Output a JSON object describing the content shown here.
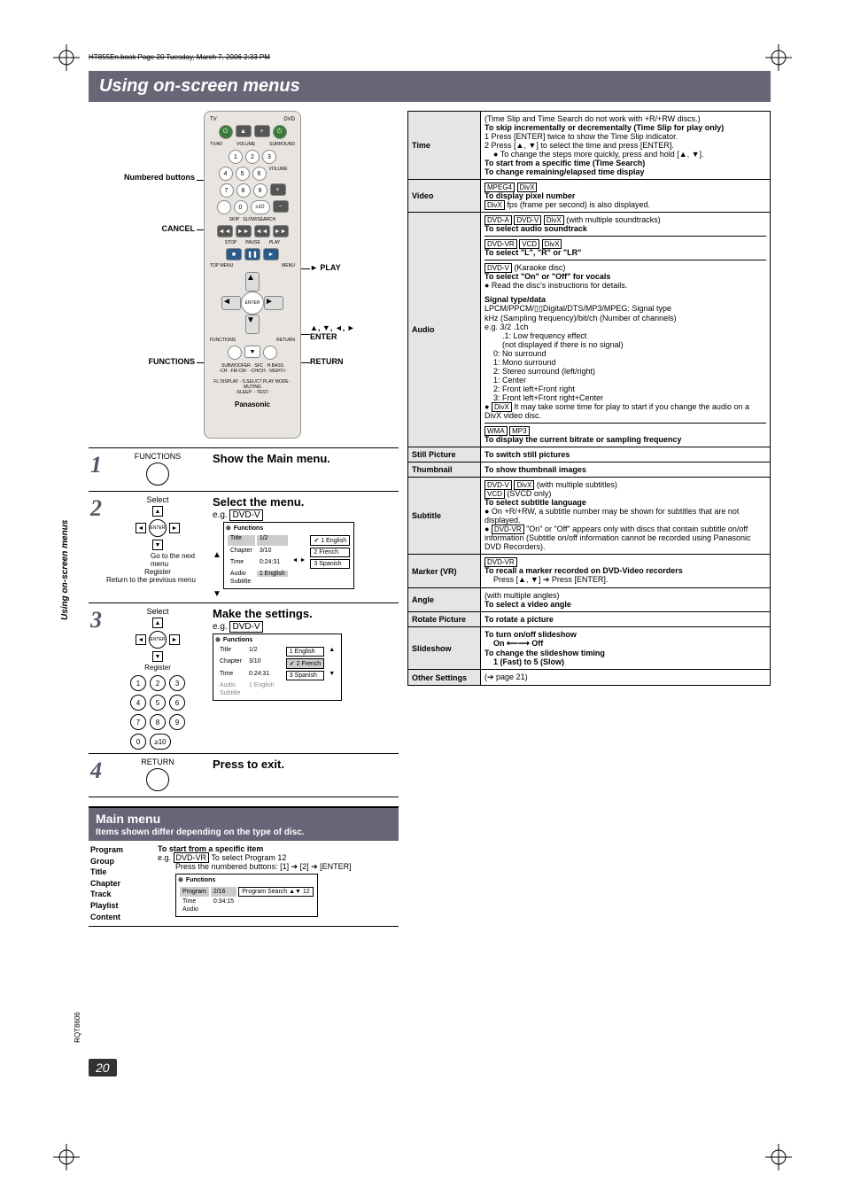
{
  "meta": {
    "header_runner": "HT855En.book   Page 20   Tuesday, March 7, 2006   2:33 PM",
    "page_number": "20",
    "model": "RQT8606",
    "side_label": "Using on-screen menus"
  },
  "title": "Using on-screen menus",
  "remote": {
    "callouts": {
      "numbered": "Numbered buttons",
      "cancel": "CANCEL",
      "functions": "FUNCTIONS",
      "play": "PLAY",
      "enter": "▲, ▼, ◄, ►\nENTER",
      "return": "RETURN"
    },
    "brand": "Panasonic",
    "dpad_center": "ENTER",
    "labels": {
      "tv": "TV",
      "dvd": "DVD",
      "tv_av": "TV/AV",
      "volume": "VOLUME",
      "surround": "SURROUND",
      "ext_in": "EXT-IN",
      "onetouch": "ONE TOUCH PLAY",
      "stop": "STOP",
      "pause": "PAUSE",
      "play": "PLAY",
      "topmenu": "TOP MENU",
      "menu": "MENU",
      "direct": "DIRECT",
      "playlist": "PLAY LIST",
      "functions": "FUNCTIONS",
      "return": "RETURN",
      "setup": "SETUP"
    }
  },
  "steps": [
    {
      "num": "1",
      "col2_label": "FUNCTIONS",
      "title": "Show the Main menu."
    },
    {
      "num": "2",
      "col2_top": "Select",
      "col2_goto": "Go to the next menu",
      "col2_register": "Register",
      "col2_return": "Return to the previous menu",
      "title": "Select the menu.",
      "eg": "e.g.",
      "eg_tag": "DVD-V",
      "osd": {
        "header": "Functions",
        "rows": [
          {
            "k": "Title",
            "v": "1/2",
            "sel": true
          },
          {
            "k": "Chapter",
            "v": "3/10"
          },
          {
            "k": "Time",
            "v": "0:24:31"
          },
          {
            "k": "Audio",
            "v": "1 English"
          },
          {
            "k": "Subtitle",
            "v": ""
          }
        ],
        "options": [
          {
            "t": "1 English",
            "sel": true
          },
          {
            "t": "2 French"
          },
          {
            "t": "3 Spanish"
          }
        ]
      }
    },
    {
      "num": "3",
      "col2_top": "Select",
      "col2_register": "Register",
      "title": "Make the settings.",
      "eg": "e.g.",
      "eg_tag": "DVD-V",
      "osd": {
        "header": "Functions",
        "rows": [
          {
            "k": "Title",
            "v": "1/2"
          },
          {
            "k": "Chapter",
            "v": "3/10"
          },
          {
            "k": "Time",
            "v": "0:24:31"
          },
          {
            "k": "Audio",
            "v": "1 English",
            "grey": true
          },
          {
            "k": "Subtitle",
            "v": "",
            "grey": true
          }
        ],
        "options": [
          {
            "t": "1 English"
          },
          {
            "t": "2 French",
            "sel": true
          },
          {
            "t": "3 Spanish"
          }
        ]
      },
      "numpad": [
        "1",
        "2",
        "3",
        "4",
        "5",
        "6",
        "7",
        "8",
        "9",
        "0",
        "≥10"
      ]
    },
    {
      "num": "4",
      "col2_label": "RETURN",
      "title": "Press to exit."
    }
  ],
  "main_menu": {
    "title": "Main menu",
    "subtitle": "Items shown differ depending on the type of disc.",
    "left": [
      "Program",
      "Group",
      "Title",
      "Chapter",
      "Track",
      "Playlist",
      "Content"
    ],
    "right_heading": "To start from a specific item",
    "right_eg": "e.g.",
    "right_eg_tag": "DVD-VR",
    "right_eg_text": "To select Program 12",
    "right_instr": "Press the numbered buttons: [1] ➔ [2] ➔ [ENTER]",
    "osd": {
      "header": "Functions",
      "rows": [
        {
          "k": "Program",
          "v": "2/16",
          "sel": true
        },
        {
          "k": "Time",
          "v": "0:34:15"
        },
        {
          "k": "Audio",
          "v": ""
        }
      ],
      "search": "Program Search ▲▼ 12"
    }
  },
  "ref": [
    {
      "label": "Time",
      "body": [
        {
          "t": "(Time Slip and Time Search do not work with +R/+RW discs.)"
        },
        {
          "t": "To skip incrementally or decrementally (Time Slip for play only)",
          "bold": true
        },
        {
          "t": "1    Press [ENTER] twice to show the Time Slip indicator."
        },
        {
          "t": "2    Press [▲, ▼] to select the time and press [ENTER]."
        },
        {
          "t": "● To change the steps more quickly, press and hold [▲, ▼].",
          "indent": 1
        },
        {
          "t": "To start from a specific time (Time Search)",
          "bold": true
        },
        {
          "t": "To change remaining/elapsed time display",
          "bold": true
        }
      ]
    },
    {
      "label": "Video",
      "body": [
        {
          "tags": [
            "MPEG4",
            "DivX"
          ]
        },
        {
          "t": "To display pixel number",
          "bold": true
        },
        {
          "t_pre_tag": "DivX",
          "t": " fps (frame per second) is also displayed."
        }
      ]
    },
    {
      "label": "Audio",
      "body": [
        {
          "tags": [
            "DVD-A",
            "DVD-V",
            "DivX"
          ],
          "suffix": " (with multiple soundtracks)"
        },
        {
          "t": "To select audio soundtrack",
          "bold": true
        },
        {
          "hr": true
        },
        {
          "tags": [
            "DVD-VR",
            "VCD",
            "DivX"
          ]
        },
        {
          "t": "To select \"L\", \"R\" or \"LR\"",
          "bold": true
        },
        {
          "hr": true
        },
        {
          "tags": [
            "DVD-V"
          ],
          "suffix": " (Karaoke disc)"
        },
        {
          "t": "To select \"On\" or \"Off\" for vocals",
          "bold": true
        },
        {
          "t": "● Read the disc's instructions for details."
        },
        {
          "blank": true
        },
        {
          "t": "Signal type/data",
          "bold": true
        },
        {
          "t": "LPCM/PPCM/▯▯Digital/DTS/MP3/MPEG: Signal type"
        },
        {
          "t": "kHz (Sampling frequency)/bit/ch (Number of channels)"
        },
        {
          "t": "e.g. 3/2 .1ch"
        },
        {
          "t": ".1: Low frequency effect",
          "indent": 2
        },
        {
          "t": "(not displayed if there is no signal)",
          "indent": 2
        },
        {
          "t": "0: No surround",
          "indent": 1
        },
        {
          "t": "1: Mono surround",
          "indent": 1
        },
        {
          "t": "2: Stereo surround (left/right)",
          "indent": 1
        },
        {
          "t": "1: Center",
          "indent": 1
        },
        {
          "t": "2: Front left+Front right",
          "indent": 1
        },
        {
          "t": "3: Front left+Front right+Center",
          "indent": 1
        },
        {
          "t_pre": "● ",
          "t_pre_tag": "DivX",
          "t": " It may take some time for play to start if you change the audio on a DivX video disc."
        },
        {
          "hr": true
        },
        {
          "tags": [
            "WMA",
            "MP3"
          ]
        },
        {
          "t": "To display the current bitrate or sampling frequency",
          "bold": true
        }
      ]
    },
    {
      "label": "Still Picture",
      "body": [
        {
          "t": "To switch still pictures",
          "bold": true
        }
      ]
    },
    {
      "label": "Thumbnail",
      "body": [
        {
          "t": "To show thumbnail images",
          "bold": true
        }
      ]
    },
    {
      "label": "Subtitle",
      "body": [
        {
          "tags": [
            "DVD-V",
            "DivX"
          ],
          "suffix": " (with multiple subtitles)"
        },
        {
          "tags": [
            "VCD"
          ],
          "suffix": " (SVCD only)"
        },
        {
          "t": "To select subtitle language",
          "bold": true
        },
        {
          "t": "● On +R/+RW, a subtitle number may be shown for subtitles that are not displayed."
        },
        {
          "t_pre": "● ",
          "t_pre_tag": "DVD-VR",
          "t": " \"On\" or \"Off\" appears only with discs that contain subtitle on/off information (Subtitle on/off information cannot be recorded using Panasonic DVD Recorders)."
        }
      ]
    },
    {
      "label": "Marker (VR)",
      "body": [
        {
          "tags": [
            "DVD-VR"
          ]
        },
        {
          "t": "To recall a marker recorded on DVD-Video recorders",
          "bold": true
        },
        {
          "t": "Press [▲, ▼] ➔ Press [ENTER].",
          "indent": 1
        }
      ]
    },
    {
      "label": "Angle",
      "body": [
        {
          "t": "(with multiple angles)"
        },
        {
          "t": "To select a video angle",
          "bold": true
        }
      ]
    },
    {
      "label": "Rotate Picture",
      "body": [
        {
          "t": "To rotate a picture",
          "bold": true
        }
      ]
    },
    {
      "label": "Slideshow",
      "body": [
        {
          "t": "To turn on/off slideshow",
          "bold": true
        },
        {
          "t": "On ⟵⟶ Off",
          "bold": true,
          "indent": 1
        },
        {
          "t": "To change the slideshow timing",
          "bold": true
        },
        {
          "t": "1 (Fast) to 5 (Slow)",
          "bold": true,
          "indent": 1
        }
      ]
    },
    {
      "label": "Other Settings",
      "body": [
        {
          "t": "(➔ page 21)"
        }
      ]
    }
  ]
}
